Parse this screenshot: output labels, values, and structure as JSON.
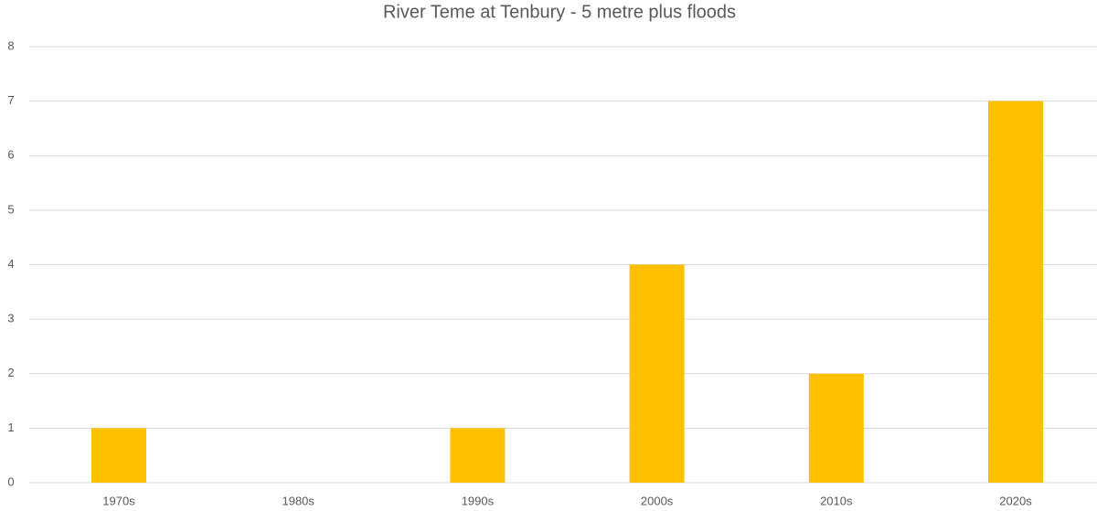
{
  "chart_data": {
    "type": "bar",
    "title": "River Teme at Tenbury - 5 metre plus floods",
    "categories": [
      "1970s",
      "1980s",
      "1990s",
      "2000s",
      "2010s",
      "2020s"
    ],
    "values": [
      1,
      0,
      1,
      4,
      2,
      7
    ],
    "color": "#ffc000",
    "ylim": [
      0,
      8
    ],
    "yticks": [
      0,
      1,
      2,
      3,
      4,
      5,
      6,
      7,
      8
    ],
    "grid": true
  }
}
